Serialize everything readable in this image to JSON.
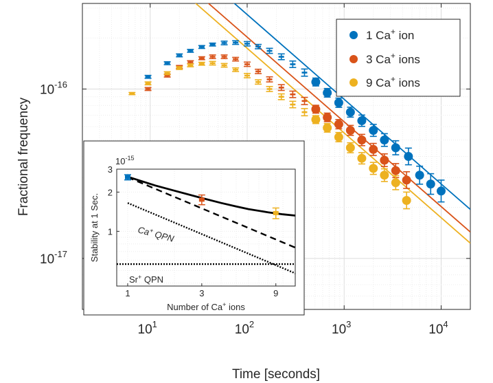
{
  "chart_data": [
    {
      "type": "scatter",
      "xscale": "log",
      "yscale": "log",
      "xlim": [
        2,
        20000
      ],
      "ylim": [
        5e-18,
        3.2e-16
      ],
      "xlabel": "Time [seconds]",
      "ylabel": "Fractional frequency",
      "xticks": [
        {
          "base": "10",
          "exp": "1",
          "value": 10
        },
        {
          "base": "10",
          "exp": "2",
          "value": 100
        },
        {
          "base": "10",
          "exp": "3",
          "value": 1000
        },
        {
          "base": "10",
          "exp": "4",
          "value": 10000
        }
      ],
      "yticks": [
        {
          "base": "10",
          "exp": "-17",
          "value": 1e-17
        },
        {
          "base": "10",
          "exp": "-16",
          "value": 1e-16
        }
      ],
      "grid": true,
      "legend_position": "top-right",
      "series": [
        {
          "name": "1 Ca+ ion",
          "legend_main": "1 Ca",
          "legend_sup": "+",
          "legend_tail": " ion",
          "color": "#0072BD",
          "points": [
            {
              "x": 9.5,
              "y": 1.18e-16,
              "err": 0.02
            },
            {
              "x": 15,
              "y": 1.42e-16,
              "err": 0.02
            },
            {
              "x": 20,
              "y": 1.58e-16,
              "err": 0.02
            },
            {
              "x": 26,
              "y": 1.68e-16,
              "err": 0.02
            },
            {
              "x": 34,
              "y": 1.77e-16,
              "err": 0.02
            },
            {
              "x": 44,
              "y": 1.83e-16,
              "err": 0.02
            },
            {
              "x": 58,
              "y": 1.87e-16,
              "err": 0.025
            },
            {
              "x": 76,
              "y": 1.88e-16,
              "err": 0.025
            },
            {
              "x": 100,
              "y": 1.85e-16,
              "err": 0.03
            },
            {
              "x": 130,
              "y": 1.78e-16,
              "err": 0.03
            },
            {
              "x": 170,
              "y": 1.68e-16,
              "err": 0.035
            },
            {
              "x": 225,
              "y": 1.55e-16,
              "err": 0.04
            },
            {
              "x": 295,
              "y": 1.4e-16,
              "err": 0.045
            },
            {
              "x": 390,
              "y": 1.25e-16,
              "err": 0.05
            },
            {
              "x": 510,
              "y": 1.1e-16,
              "err": 0.055
            },
            {
              "x": 670,
              "y": 9.5e-17,
              "err": 0.06
            },
            {
              "x": 880,
              "y": 8.3e-17,
              "err": 0.065
            },
            {
              "x": 1160,
              "y": 7.3e-17,
              "err": 0.07
            },
            {
              "x": 1520,
              "y": 6.5e-17,
              "err": 0.08
            },
            {
              "x": 2000,
              "y": 5.7e-17,
              "err": 0.085
            },
            {
              "x": 2600,
              "y": 5e-17,
              "err": 0.09
            },
            {
              "x": 3400,
              "y": 4.5e-17,
              "err": 0.1
            },
            {
              "x": 4600,
              "y": 4e-17,
              "err": 0.12
            },
            {
              "x": 6000,
              "y": 3.1e-17,
              "err": 0.13
            },
            {
              "x": 7800,
              "y": 2.75e-17,
              "err": 0.15
            },
            {
              "x": 10000,
              "y": 2.5e-17,
              "err": 0.16
            }
          ],
          "fit_anchor": {
            "x": 1000,
            "y": 8.7e-17
          }
        },
        {
          "name": "3 Ca+ ions",
          "legend_main": "3 Ca",
          "legend_sup": "+",
          "legend_tail": " ions",
          "color": "#D95319",
          "points": [
            {
              "x": 9.5,
              "y": 1e-16,
              "err": 0.02
            },
            {
              "x": 15,
              "y": 1.2e-16,
              "err": 0.02
            },
            {
              "x": 20,
              "y": 1.35e-16,
              "err": 0.02
            },
            {
              "x": 26,
              "y": 1.44e-16,
              "err": 0.02
            },
            {
              "x": 34,
              "y": 1.52e-16,
              "err": 0.02
            },
            {
              "x": 44,
              "y": 1.55e-16,
              "err": 0.025
            },
            {
              "x": 58,
              "y": 1.55e-16,
              "err": 0.025
            },
            {
              "x": 76,
              "y": 1.5e-16,
              "err": 0.025
            },
            {
              "x": 100,
              "y": 1.4e-16,
              "err": 0.03
            },
            {
              "x": 130,
              "y": 1.27e-16,
              "err": 0.03
            },
            {
              "x": 170,
              "y": 1.14e-16,
              "err": 0.035
            },
            {
              "x": 225,
              "y": 1.02e-16,
              "err": 0.04
            },
            {
              "x": 295,
              "y": 9.3e-17,
              "err": 0.045
            },
            {
              "x": 390,
              "y": 8.5e-17,
              "err": 0.05
            },
            {
              "x": 510,
              "y": 7.6e-17,
              "err": 0.055
            },
            {
              "x": 670,
              "y": 6.8e-17,
              "err": 0.06
            },
            {
              "x": 880,
              "y": 6.2e-17,
              "err": 0.065
            },
            {
              "x": 1160,
              "y": 5.7e-17,
              "err": 0.07
            },
            {
              "x": 1520,
              "y": 5e-17,
              "err": 0.08
            },
            {
              "x": 2000,
              "y": 4.4e-17,
              "err": 0.085
            },
            {
              "x": 2600,
              "y": 3.8e-17,
              "err": 0.09
            },
            {
              "x": 3400,
              "y": 3.3e-17,
              "err": 0.1
            },
            {
              "x": 4400,
              "y": 2.9e-17,
              "err": 0.12
            }
          ],
          "fit_anchor": {
            "x": 1000,
            "y": 6.4e-17
          }
        },
        {
          "name": "9 Ca+ ions",
          "legend_main": "9 Ca",
          "legend_sup": "+",
          "legend_tail": " ions",
          "color": "#EDB120",
          "points": [
            {
              "x": 6.5,
              "y": 9.4e-17,
              "err": 0.015
            },
            {
              "x": 9.5,
              "y": 1.08e-16,
              "err": 0.02
            },
            {
              "x": 15,
              "y": 1.24e-16,
              "err": 0.02
            },
            {
              "x": 20,
              "y": 1.33e-16,
              "err": 0.02
            },
            {
              "x": 26,
              "y": 1.38e-16,
              "err": 0.02
            },
            {
              "x": 34,
              "y": 1.41e-16,
              "err": 0.02
            },
            {
              "x": 44,
              "y": 1.42e-16,
              "err": 0.025
            },
            {
              "x": 58,
              "y": 1.38e-16,
              "err": 0.025
            },
            {
              "x": 76,
              "y": 1.3e-16,
              "err": 0.025
            },
            {
              "x": 100,
              "y": 1.2e-16,
              "err": 0.03
            },
            {
              "x": 130,
              "y": 1.1e-16,
              "err": 0.03
            },
            {
              "x": 170,
              "y": 1e-16,
              "err": 0.035
            },
            {
              "x": 225,
              "y": 9e-17,
              "err": 0.04
            },
            {
              "x": 295,
              "y": 8.1e-17,
              "err": 0.045
            },
            {
              "x": 390,
              "y": 7.3e-17,
              "err": 0.05
            },
            {
              "x": 510,
              "y": 6.6e-17,
              "err": 0.055
            },
            {
              "x": 670,
              "y": 5.9e-17,
              "err": 0.06
            },
            {
              "x": 880,
              "y": 5.2e-17,
              "err": 0.065
            },
            {
              "x": 1160,
              "y": 4.5e-17,
              "err": 0.07
            },
            {
              "x": 1520,
              "y": 3.9e-17,
              "err": 0.08
            },
            {
              "x": 2000,
              "y": 3.4e-17,
              "err": 0.085
            },
            {
              "x": 2600,
              "y": 3.1e-17,
              "err": 0.09
            },
            {
              "x": 3400,
              "y": 2.8e-17,
              "err": 0.1
            },
            {
              "x": 4400,
              "y": 2.2e-17,
              "err": 0.12
            }
          ],
          "fit_anchor": {
            "x": 1000,
            "y": 5.5e-17
          }
        }
      ]
    },
    {
      "type": "scatter",
      "inset": true,
      "xscale": "log",
      "yscale": "log",
      "xlim": [
        0.85,
        12
      ],
      "ylim": [
        3.8e-16,
        3e-15
      ],
      "xlabel_main": "Number of Ca",
      "xlabel_sup": "+",
      "xlabel_tail": " ions",
      "ylabel": "Stability at 1 Sec.",
      "exponent_main": "10",
      "exponent_sup": "-15",
      "xticks": [
        {
          "label": "1",
          "value": 1
        },
        {
          "label": "3",
          "value": 3
        },
        {
          "label": "9",
          "value": 9
        }
      ],
      "yticks": [
        {
          "label": "1",
          "value": 1e-15
        },
        {
          "label": "2",
          "value": 2e-15
        },
        {
          "label": "3",
          "value": 3e-15
        }
      ],
      "points": [
        {
          "x": 1,
          "y": 2.6e-15,
          "err": 1.2e-16,
          "color": "#0072BD"
        },
        {
          "x": 3,
          "y": 1.75e-15,
          "err": 1.5e-16,
          "color": "#D95319"
        },
        {
          "x": 9,
          "y": 1.38e-15,
          "err": 1.3e-16,
          "color": "#EDB120"
        }
      ],
      "curves": [
        {
          "name": "solid",
          "style": "solid",
          "x": [
            1,
            1.5,
            2,
            3,
            4,
            5,
            6,
            8,
            10,
            12
          ],
          "y": [
            2.62e-15,
            2.25e-15,
            2.05e-15,
            1.8e-15,
            1.65e-15,
            1.55e-15,
            1.48e-15,
            1.4e-15,
            1.35e-15,
            1.32e-15
          ]
        },
        {
          "name": "dashed",
          "style": "dashed",
          "x": [
            1,
            12
          ],
          "y": [
            2.6e-15,
            7.5e-16
          ]
        },
        {
          "name": "Ca+ QPN",
          "style": "dotted",
          "x": [
            1,
            12
          ],
          "y": [
            1.65e-15,
            4.76e-16
          ]
        },
        {
          "name": "Sr+ QPN",
          "style": "dotted",
          "x": [
            0.85,
            12
          ],
          "y": [
            5.6e-16,
            5.6e-16
          ]
        }
      ],
      "annotations": [
        {
          "main": "Ca",
          "sup": "+",
          "tail": " QPN"
        },
        {
          "main": "Sr",
          "sup": "+",
          "tail": " QPN"
        }
      ]
    }
  ]
}
